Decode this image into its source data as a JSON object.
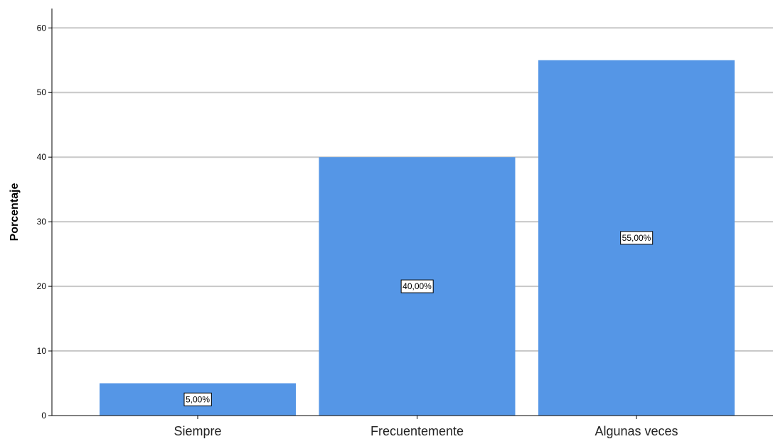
{
  "chart_data": {
    "type": "bar",
    "categories": [
      "Siempre",
      "Frecuentemente",
      "Algunas veces"
    ],
    "values": [
      5,
      40,
      55
    ],
    "data_labels": [
      "5,00%",
      "40,00%",
      "55,00%"
    ],
    "title": "",
    "xlabel": "",
    "ylabel": "Porcentaje",
    "ylim": [
      0,
      63
    ],
    "yticks": [
      0,
      10,
      20,
      30,
      40,
      50,
      60
    ],
    "grid": true,
    "bar_color": "#5596e6",
    "grid_color": "#c8c8c8"
  }
}
